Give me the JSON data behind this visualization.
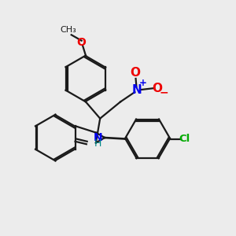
{
  "bg_color": "#ececec",
  "bond_color": "#1a1a1a",
  "N_color": "#0000ee",
  "O_color": "#ee0000",
  "Cl_color": "#00aa00",
  "H_color": "#008888",
  "lw": 1.6,
  "dbo": 0.07,
  "hex_r": 1.0,
  "xlim": [
    0,
    10
  ],
  "ylim": [
    0,
    10
  ]
}
